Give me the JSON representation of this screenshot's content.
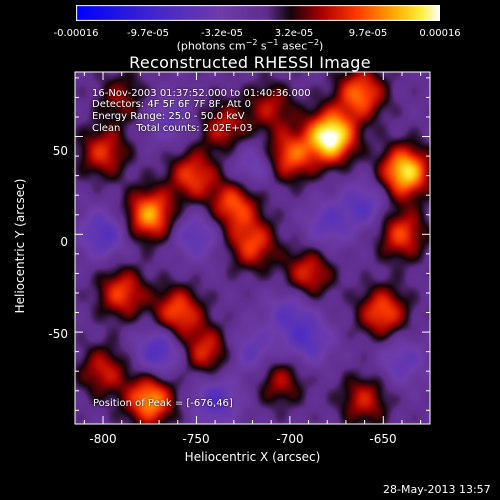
{
  "chart_data": {
    "type": "heatmap",
    "title": "Reconstructed RHESSI Image",
    "xlabel": "Heliocentric X (arcsec)",
    "ylabel": "Heliocentric Y (arcsec)",
    "xlim": [
      -815,
      -625
    ],
    "ylim": [
      -97,
      83
    ],
    "xticks": [
      "-800",
      "-750",
      "-700",
      "-650"
    ],
    "xtick_values": [
      -800,
      -750,
      -700,
      -650
    ],
    "yticks": [
      "50",
      "0",
      "-50"
    ],
    "ytick_values": [
      50,
      0,
      -50
    ],
    "colorbar": {
      "ticks": [
        "-0.00016",
        "-9.7e-05",
        "-3.2e-05",
        "3.2e-05",
        "9.7e-05",
        "0.00016"
      ],
      "tick_values": [
        -0.00016,
        -9.7e-05,
        -3.2e-05,
        3.2e-05,
        9.7e-05,
        0.00016
      ],
      "range": [
        -0.00016,
        0.00016
      ],
      "units": "(photons cm-2 s-1 asec-2)"
    },
    "annotations": [
      "16-Nov-2003 01:37:52.000 to 01:40:36.000",
      "Detectors: 4F 5F 6F 7F 8F, Att 0",
      "Energy Range: 25.0 - 50.0 keV",
      "Clean     Total counts: 2.02E+03"
    ],
    "peak_label": "Position of Peak = [-676,46]",
    "peak": [
      -676,
      46
    ],
    "sources": [
      {
        "x": -678,
        "y": 50,
        "v": 1.0
      },
      {
        "x": -638,
        "y": 32,
        "v": 0.85
      },
      {
        "x": -662,
        "y": 72,
        "v": 0.6
      },
      {
        "x": -700,
        "y": 40,
        "v": 0.55
      },
      {
        "x": -775,
        "y": 10,
        "v": 0.7
      },
      {
        "x": -752,
        "y": 30,
        "v": 0.5
      },
      {
        "x": -730,
        "y": 15,
        "v": 0.55
      },
      {
        "x": -800,
        "y": 42,
        "v": 0.45
      },
      {
        "x": -720,
        "y": -5,
        "v": 0.5
      },
      {
        "x": -690,
        "y": -20,
        "v": 0.45
      },
      {
        "x": -650,
        "y": -40,
        "v": 0.55
      },
      {
        "x": -640,
        "y": 0,
        "v": 0.5
      },
      {
        "x": -760,
        "y": -40,
        "v": 0.55
      },
      {
        "x": -790,
        "y": -30,
        "v": 0.5
      },
      {
        "x": -745,
        "y": -60,
        "v": 0.45
      },
      {
        "x": -775,
        "y": -85,
        "v": 0.7
      },
      {
        "x": -705,
        "y": -75,
        "v": 0.35
      },
      {
        "x": -800,
        "y": -70,
        "v": 0.4
      },
      {
        "x": -660,
        "y": -85,
        "v": 0.4
      },
      {
        "x": -710,
        "y": 65,
        "v": 0.35
      },
      {
        "x": -790,
        "y": 70,
        "v": 0.3
      },
      {
        "x": -735,
        "y": 55,
        "v": 0.4
      },
      {
        "x": -765,
        "y": 60,
        "v": -0.3
      },
      {
        "x": -740,
        "y": -85,
        "v": -0.4
      },
      {
        "x": -690,
        "y": -55,
        "v": -0.35
      },
      {
        "x": -800,
        "y": 0,
        "v": -0.4
      },
      {
        "x": -770,
        "y": -60,
        "v": -0.45
      },
      {
        "x": -720,
        "y": 35,
        "v": -0.3
      },
      {
        "x": -660,
        "y": 15,
        "v": -0.35
      },
      {
        "x": -680,
        "y": 5,
        "v": -0.3
      },
      {
        "x": -750,
        "y": 0,
        "v": -0.35
      },
      {
        "x": -700,
        "y": -40,
        "v": -0.3
      },
      {
        "x": -640,
        "y": -65,
        "v": -0.3
      },
      {
        "x": -720,
        "y": -60,
        "v": -0.3
      }
    ]
  },
  "timestamp": "28-May-2013 13:57"
}
